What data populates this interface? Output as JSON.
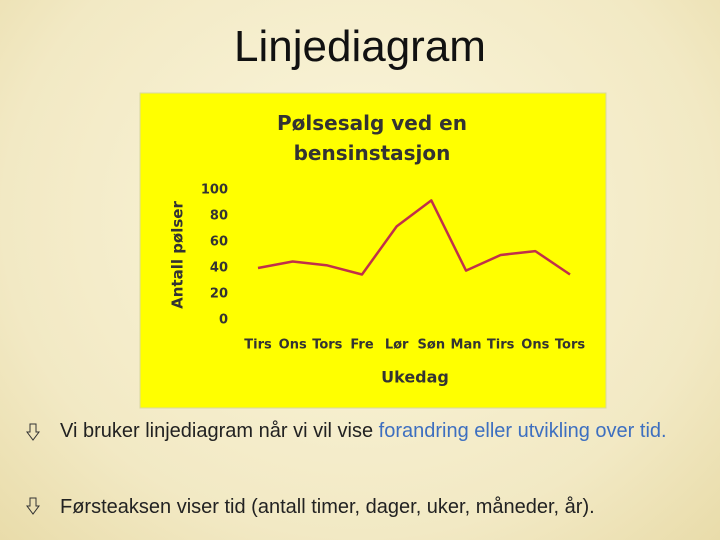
{
  "slide": {
    "title": "Linjediagram",
    "bullets": [
      {
        "text": "Vi bruker linjediagram når vi vil vise ",
        "highlight": "forandring eller utvikling over tid."
      },
      {
        "text": "Førsteaksen viser tid (antall timer, dager, uker, måneder, år)."
      }
    ]
  },
  "chart_data": {
    "type": "line",
    "title": "Pølsesalg ved en bensinstasjon",
    "x_label": "Ukedag",
    "y_label": "Antall pølser",
    "categories": [
      "Tirs",
      "Ons",
      "Tors",
      "Fre",
      "Lør",
      "Søn",
      "Man",
      "Tirs",
      "Ons",
      "Tors"
    ],
    "values": [
      40,
      45,
      42,
      35,
      72,
      92,
      38,
      50,
      53,
      35
    ],
    "color": "#c0304a",
    "ylim": [
      0,
      100
    ],
    "yticks": [
      0,
      20,
      40,
      60,
      80,
      100
    ],
    "grid": false
  }
}
